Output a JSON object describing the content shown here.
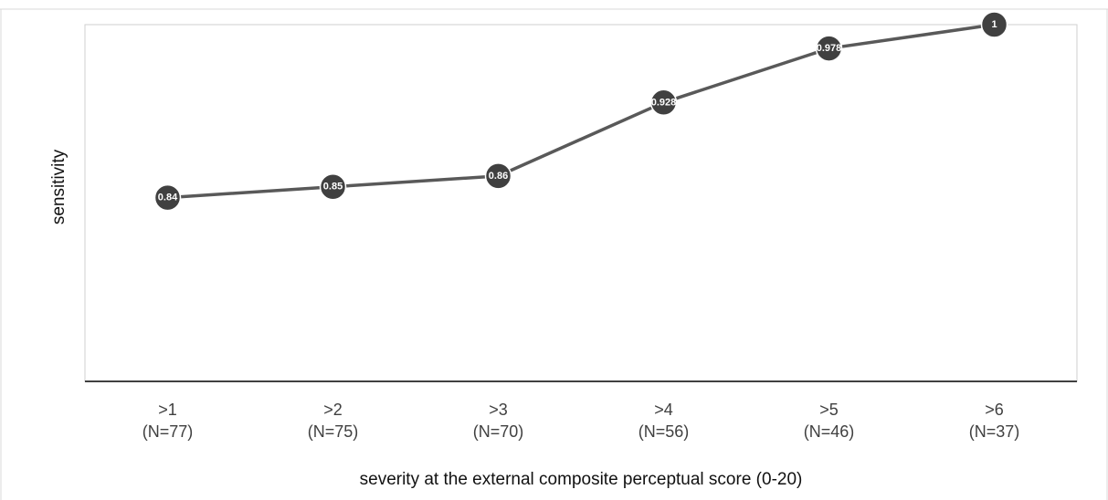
{
  "chart_data": {
    "type": "line",
    "title": "",
    "xlabel": "severity at the external composite perceptual score (0-20)",
    "ylabel": "sensitivity",
    "categories": [
      [
        ">1",
        "(N=77)"
      ],
      [
        ">2",
        "(N=75)"
      ],
      [
        ">3",
        "(N=70)"
      ],
      [
        ">4",
        "(N=56)"
      ],
      [
        ">5",
        "(N=46)"
      ],
      [
        ">6",
        "(N=37)"
      ]
    ],
    "series": [
      {
        "values": [
          0.84,
          0.85,
          0.86,
          0.928,
          0.978,
          1
        ],
        "labels": [
          "0.84",
          "0.85",
          "0.86",
          "0.928",
          "0.978",
          "1"
        ]
      }
    ],
    "ylim": [
      0.67,
      1
    ],
    "grid": false,
    "legend": "none",
    "colors": {
      "line": "#595959",
      "marker": "#404040",
      "marker_text": "#ffffff",
      "axis": "#404040"
    }
  }
}
